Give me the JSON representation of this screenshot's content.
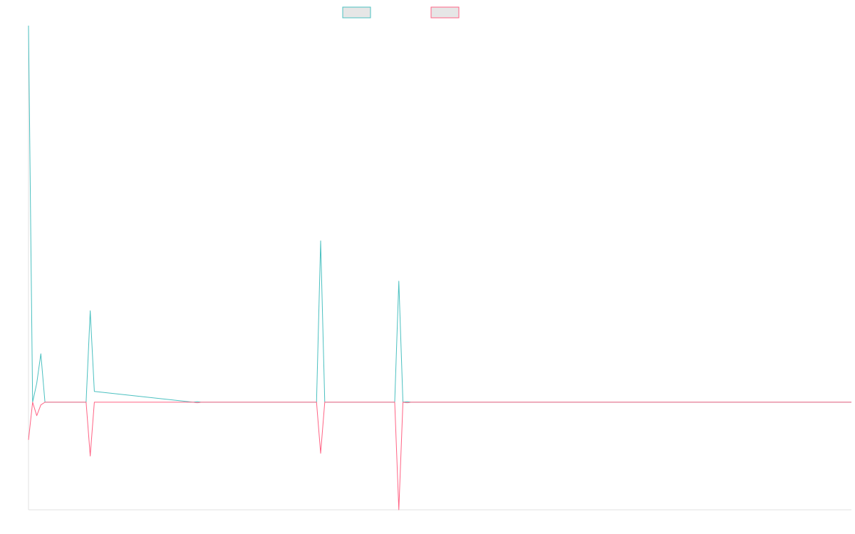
{
  "chart_data": {
    "type": "line",
    "title": "",
    "xlabel": "",
    "ylabel": "",
    "grid": false,
    "legend_position": "top-center",
    "xlim": [
      0,
      200
    ],
    "ylim": [
      -40,
      140
    ],
    "x": [
      0,
      1,
      2,
      3,
      4,
      14,
      15,
      16,
      40,
      41,
      42,
      70,
      71,
      72,
      89,
      90,
      91,
      92,
      93,
      200
    ],
    "series": [
      {
        "color": "#4bc0c0",
        "values": [
          140,
          0,
          7,
          18,
          0,
          0,
          34,
          4,
          0,
          0.2,
          0,
          0,
          60,
          0,
          0,
          45,
          0,
          0.2,
          0,
          0
        ]
      },
      {
        "color": "#ff6384",
        "values": [
          -14,
          0,
          -5,
          -1,
          0,
          0,
          -20,
          0,
          0,
          -0.2,
          0,
          0,
          -19,
          0,
          0,
          -40,
          0,
          -0.2,
          0,
          0
        ]
      }
    ]
  }
}
